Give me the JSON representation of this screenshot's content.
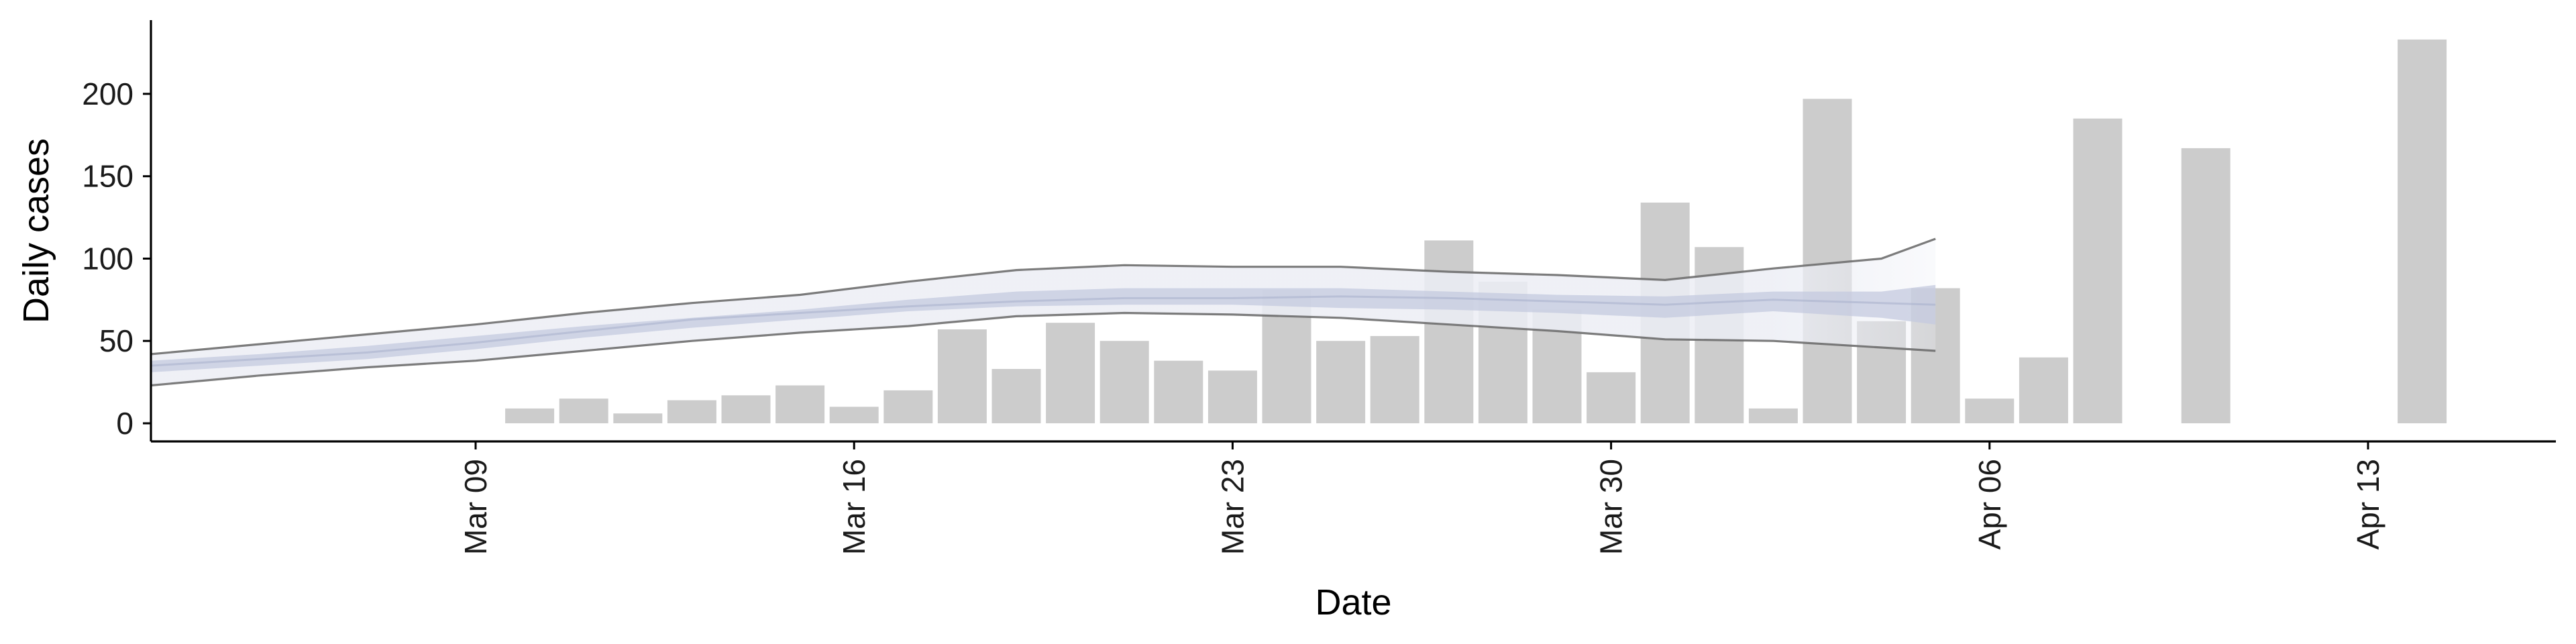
{
  "chart_data": {
    "type": "bar",
    "xlabel": "Date",
    "ylabel": "Daily cases",
    "ylim": [
      -10,
      243
    ],
    "xlim": [
      "2020-03-01",
      "2020-04-16"
    ],
    "x_ticks": [
      {
        "date": "2020-03-09",
        "label": "Mar 09"
      },
      {
        "date": "2020-03-16",
        "label": "Mar 16"
      },
      {
        "date": "2020-03-23",
        "label": "Mar 23"
      },
      {
        "date": "2020-03-30",
        "label": "Mar 30"
      },
      {
        "date": "2020-04-06",
        "label": "Apr 06"
      },
      {
        "date": "2020-04-13",
        "label": "Apr 13"
      }
    ],
    "y_ticks": [
      0,
      50,
      100,
      150,
      200
    ],
    "grid": false,
    "colors": {
      "bars": "#cccccc",
      "band_outer": "#eceef5",
      "band_inner": "#c4cadf",
      "band_line": "#6e6e6e",
      "axis": "#000000"
    },
    "bars": [
      {
        "date": "2020-03-10",
        "value": 9
      },
      {
        "date": "2020-03-11",
        "value": 15
      },
      {
        "date": "2020-03-12",
        "value": 6
      },
      {
        "date": "2020-03-13",
        "value": 14
      },
      {
        "date": "2020-03-14",
        "value": 17
      },
      {
        "date": "2020-03-15",
        "value": 23
      },
      {
        "date": "2020-03-16",
        "value": 10
      },
      {
        "date": "2020-03-17",
        "value": 20
      },
      {
        "date": "2020-03-18",
        "value": 57
      },
      {
        "date": "2020-03-19",
        "value": 33
      },
      {
        "date": "2020-03-20",
        "value": 61
      },
      {
        "date": "2020-03-21",
        "value": 50
      },
      {
        "date": "2020-03-22",
        "value": 38
      },
      {
        "date": "2020-03-23",
        "value": 32
      },
      {
        "date": "2020-03-24",
        "value": 81
      },
      {
        "date": "2020-03-25",
        "value": 50
      },
      {
        "date": "2020-03-26",
        "value": 53
      },
      {
        "date": "2020-03-27",
        "value": 111
      },
      {
        "date": "2020-03-28",
        "value": 86
      },
      {
        "date": "2020-03-29",
        "value": 69
      },
      {
        "date": "2020-03-30",
        "value": 31
      },
      {
        "date": "2020-03-31",
        "value": 134
      },
      {
        "date": "2020-04-01",
        "value": 107
      },
      {
        "date": "2020-04-02",
        "value": 9
      },
      {
        "date": "2020-04-03",
        "value": 197
      },
      {
        "date": "2020-04-04",
        "value": 62
      },
      {
        "date": "2020-04-05",
        "value": 82
      },
      {
        "date": "2020-04-06",
        "value": 15
      },
      {
        "date": "2020-04-07",
        "value": 40
      },
      {
        "date": "2020-04-08",
        "value": 185
      },
      {
        "date": "2020-04-10",
        "value": 167
      },
      {
        "date": "2020-04-14",
        "value": 233
      }
    ],
    "estimate": {
      "dates": [
        "2020-03-03",
        "2020-03-05",
        "2020-03-07",
        "2020-03-09",
        "2020-03-11",
        "2020-03-13",
        "2020-03-15",
        "2020-03-17",
        "2020-03-19",
        "2020-03-21",
        "2020-03-23",
        "2020-03-25",
        "2020-03-27",
        "2020-03-29",
        "2020-03-31",
        "2020-04-02",
        "2020-04-04",
        "2020-04-05"
      ],
      "median": [
        35,
        39,
        43,
        49,
        56,
        63,
        67,
        71,
        74,
        76,
        76,
        77,
        76,
        74,
        72,
        75,
        73,
        72
      ],
      "upper_outer": [
        42,
        48,
        54,
        60,
        67,
        73,
        78,
        86,
        93,
        96,
        95,
        95,
        92,
        90,
        87,
        94,
        100,
        112
      ],
      "lower_outer": [
        23,
        29,
        34,
        38,
        44,
        50,
        55,
        59,
        65,
        67,
        66,
        64,
        60,
        56,
        51,
        50,
        46,
        44
      ],
      "upper_inner": [
        38,
        42,
        47,
        53,
        59,
        64,
        69,
        75,
        80,
        82,
        82,
        82,
        80,
        78,
        77,
        80,
        80,
        84
      ],
      "lower_inner": [
        31,
        35,
        39,
        45,
        52,
        58,
        63,
        68,
        71,
        72,
        72,
        70,
        69,
        67,
        64,
        68,
        64,
        60
      ],
      "fade_from": "2020-04-02"
    }
  }
}
